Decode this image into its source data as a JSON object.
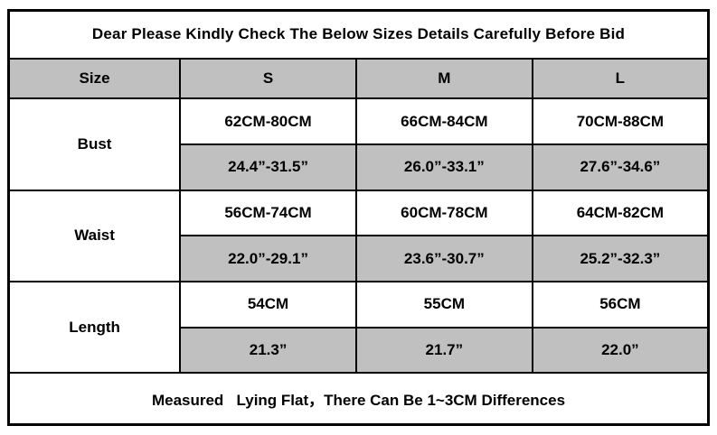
{
  "title": "Dear Please Kindly Check The Below Sizes Details Carefully Before Bid",
  "header": {
    "size_label": "Size",
    "columns": [
      "S",
      "M",
      "L"
    ]
  },
  "rows": [
    {
      "label": "Bust",
      "cm": [
        "62CM-80CM",
        "66CM-84CM",
        "70CM-88CM"
      ],
      "inch": [
        "24.4”-31.5”",
        "26.0”-33.1”",
        "27.6”-34.6”"
      ]
    },
    {
      "label": "Waist",
      "cm": [
        "56CM-74CM",
        "60CM-78CM",
        "64CM-82CM"
      ],
      "inch": [
        "22.0”-29.1”",
        "23.6”-30.7”",
        "25.2”-32.3”"
      ]
    },
    {
      "label": "Length",
      "cm": [
        "54CM",
        "55CM",
        "56CM"
      ],
      "inch": [
        "21.3”",
        "21.7”",
        "22.0”"
      ]
    }
  ],
  "footer": "Measured   Lying Flat，There Can Be 1~3CM Differences",
  "colors": {
    "shaded_bg": "#c0c0c0",
    "border": "#000000",
    "background": "#ffffff",
    "text": "#000000"
  },
  "chart_data": {
    "type": "table",
    "title": "Dear Please Kindly Check The Below Sizes Details Carefully Before Bid",
    "columns": [
      "Size",
      "S",
      "M",
      "L"
    ],
    "rows": [
      [
        "Bust (CM)",
        "62CM-80CM",
        "66CM-84CM",
        "70CM-88CM"
      ],
      [
        "Bust (inch)",
        "24.4”-31.5”",
        "26.0”-33.1”",
        "27.6”-34.6”"
      ],
      [
        "Waist (CM)",
        "56CM-74CM",
        "60CM-78CM",
        "64CM-82CM"
      ],
      [
        "Waist (inch)",
        "22.0”-29.1”",
        "23.6”-30.7”",
        "25.2”-32.3”"
      ],
      [
        "Length (CM)",
        "54CM",
        "55CM",
        "56CM"
      ],
      [
        "Length (inch)",
        "21.3”",
        "21.7”",
        "22.0”"
      ]
    ],
    "footnote": "Measured   Lying Flat，There Can Be 1~3CM Differences",
    "layout": "shaded header row and alternating shaded inch rows (#c0c0c0), black grid borders"
  }
}
